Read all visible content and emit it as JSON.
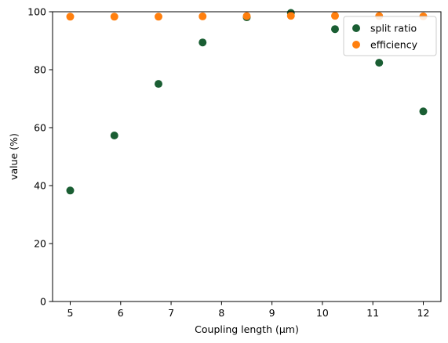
{
  "chart_data": {
    "type": "scatter",
    "title": "",
    "xlabel": "Coupling length (µm)",
    "ylabel": "value (%)",
    "xlim": [
      4.65,
      12.35
    ],
    "ylim": [
      0,
      100
    ],
    "xticks": [
      5,
      6,
      7,
      8,
      9,
      10,
      11,
      12
    ],
    "yticks": [
      0,
      20,
      40,
      60,
      80,
      100
    ],
    "grid": false,
    "legend_position": "top-right",
    "series": [
      {
        "name": "split ratio",
        "color": "#1a5e33",
        "points": [
          {
            "x": 5.0,
            "y": 38.3
          },
          {
            "x": 5.875,
            "y": 57.3
          },
          {
            "x": 6.75,
            "y": 75.1
          },
          {
            "x": 7.625,
            "y": 89.4
          },
          {
            "x": 8.5,
            "y": 98.1
          },
          {
            "x": 9.375,
            "y": 99.6
          },
          {
            "x": 10.25,
            "y": 94.0
          },
          {
            "x": 11.125,
            "y": 82.4
          },
          {
            "x": 12.0,
            "y": 65.6
          }
        ]
      },
      {
        "name": "efficiency",
        "color": "#ff7f0e",
        "points": [
          {
            "x": 5.0,
            "y": 98.3
          },
          {
            "x": 5.875,
            "y": 98.3
          },
          {
            "x": 6.75,
            "y": 98.3
          },
          {
            "x": 7.625,
            "y": 98.4
          },
          {
            "x": 8.5,
            "y": 98.5
          },
          {
            "x": 9.375,
            "y": 98.6
          },
          {
            "x": 10.25,
            "y": 98.6
          },
          {
            "x": 11.125,
            "y": 98.5
          },
          {
            "x": 12.0,
            "y": 98.4
          }
        ]
      }
    ]
  }
}
